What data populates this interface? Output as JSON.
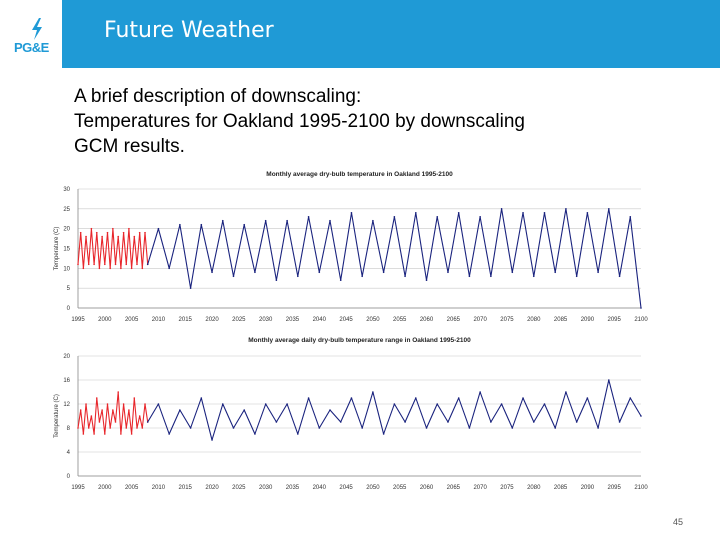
{
  "header": {
    "title": "Future Weather",
    "logo_text": "PG&E",
    "color": "#1f9ad6"
  },
  "description": {
    "lines": [
      "A brief description of downscaling:",
      "Temperatures for Oakland 1995-2100 by downscaling",
      "GCM results."
    ]
  },
  "page_number": "45",
  "chart_data": [
    {
      "type": "line",
      "title": "Monthly average dry-bulb temperature in Oakland 1995-2100",
      "xlabel": "",
      "ylabel": "Temperature (C)",
      "xlim": [
        1995,
        2100
      ],
      "ylim": [
        0,
        30
      ],
      "xticks": [
        1995,
        2000,
        2005,
        2010,
        2015,
        2020,
        2025,
        2030,
        2035,
        2040,
        2045,
        2050,
        2055,
        2060,
        2065,
        2070,
        2075,
        2080,
        2085,
        2090,
        2095,
        2100
      ],
      "yticks": [
        0,
        5,
        10,
        15,
        20,
        25,
        30
      ],
      "grid": true,
      "series": [
        {
          "color": "#e8262b",
          "x": [
            1995,
            1995.5,
            1996,
            1996.5,
            1997,
            1997.5,
            1998,
            1998.5,
            1999,
            1999.5,
            2000,
            2000.5,
            2001,
            2001.5,
            2002,
            2002.5,
            2003,
            2003.5,
            2004,
            2004.5,
            2005,
            2005.5,
            2006,
            2006.5,
            2007,
            2007.5,
            2008
          ],
          "values": [
            11,
            19,
            10,
            18,
            11,
            20,
            11,
            19,
            10,
            18,
            11,
            19,
            10,
            20,
            11,
            18,
            10,
            19,
            11,
            20,
            10,
            18,
            11,
            19,
            10,
            19,
            11
          ]
        },
        {
          "color": "#1a237e",
          "x": [
            2008,
            2010,
            2012,
            2014,
            2016,
            2018,
            2020,
            2022,
            2024,
            2026,
            2028,
            2030,
            2032,
            2034,
            2036,
            2038,
            2040,
            2042,
            2044,
            2046,
            2048,
            2050,
            2052,
            2054,
            2056,
            2058,
            2060,
            2062,
            2064,
            2066,
            2068,
            2070,
            2072,
            2074,
            2076,
            2078,
            2080,
            2082,
            2084,
            2086,
            2088,
            2090,
            2092,
            2094,
            2096,
            2098,
            2100
          ],
          "values": [
            11,
            20,
            10,
            21,
            5,
            21,
            9,
            22,
            8,
            21,
            9,
            22,
            7,
            22,
            8,
            23,
            9,
            22,
            7,
            24,
            8,
            22,
            9,
            23,
            8,
            24,
            7,
            23,
            9,
            24,
            8,
            23,
            8,
            25,
            9,
            24,
            8,
            24,
            9,
            25,
            8,
            24,
            9,
            25,
            8,
            23,
            0
          ]
        }
      ]
    },
    {
      "type": "line",
      "title": "Monthly average daily dry-bulb temperature range in Oakland 1995-2100",
      "xlabel": "",
      "ylabel": "Temperature (C)",
      "xlim": [
        1995,
        2100
      ],
      "ylim": [
        0,
        20
      ],
      "xticks": [
        1995,
        2000,
        2005,
        2010,
        2015,
        2020,
        2025,
        2030,
        2035,
        2040,
        2045,
        2050,
        2055,
        2060,
        2065,
        2070,
        2075,
        2080,
        2085,
        2090,
        2095,
        2100
      ],
      "yticks": [
        0,
        4,
        8,
        12,
        16,
        20
      ],
      "grid": true,
      "series": [
        {
          "color": "#e8262b",
          "x": [
            1995,
            1995.5,
            1996,
            1996.5,
            1997,
            1997.5,
            1998,
            1998.5,
            1999,
            1999.5,
            2000,
            2000.5,
            2001,
            2001.5,
            2002,
            2002.5,
            2003,
            2003.5,
            2004,
            2004.5,
            2005,
            2005.5,
            2006,
            2006.5,
            2007,
            2007.5,
            2008
          ],
          "values": [
            8,
            11,
            7,
            12,
            8,
            10,
            7,
            13,
            9,
            11,
            7,
            12,
            8,
            11,
            9,
            14,
            7,
            12,
            8,
            11,
            7,
            13,
            8,
            10,
            8,
            12,
            9
          ]
        },
        {
          "color": "#1a237e",
          "x": [
            2008,
            2010,
            2012,
            2014,
            2016,
            2018,
            2020,
            2022,
            2024,
            2026,
            2028,
            2030,
            2032,
            2034,
            2036,
            2038,
            2040,
            2042,
            2044,
            2046,
            2048,
            2050,
            2052,
            2054,
            2056,
            2058,
            2060,
            2062,
            2064,
            2066,
            2068,
            2070,
            2072,
            2074,
            2076,
            2078,
            2080,
            2082,
            2084,
            2086,
            2088,
            2090,
            2092,
            2094,
            2096,
            2098,
            2100
          ],
          "values": [
            9,
            12,
            7,
            11,
            8,
            13,
            6,
            12,
            8,
            11,
            7,
            12,
            9,
            12,
            7,
            13,
            8,
            11,
            9,
            13,
            8,
            14,
            7,
            12,
            9,
            13,
            8,
            12,
            9,
            13,
            8,
            14,
            9,
            12,
            8,
            13,
            9,
            12,
            8,
            14,
            9,
            13,
            8,
            16,
            9,
            13,
            10
          ]
        }
      ]
    }
  ]
}
